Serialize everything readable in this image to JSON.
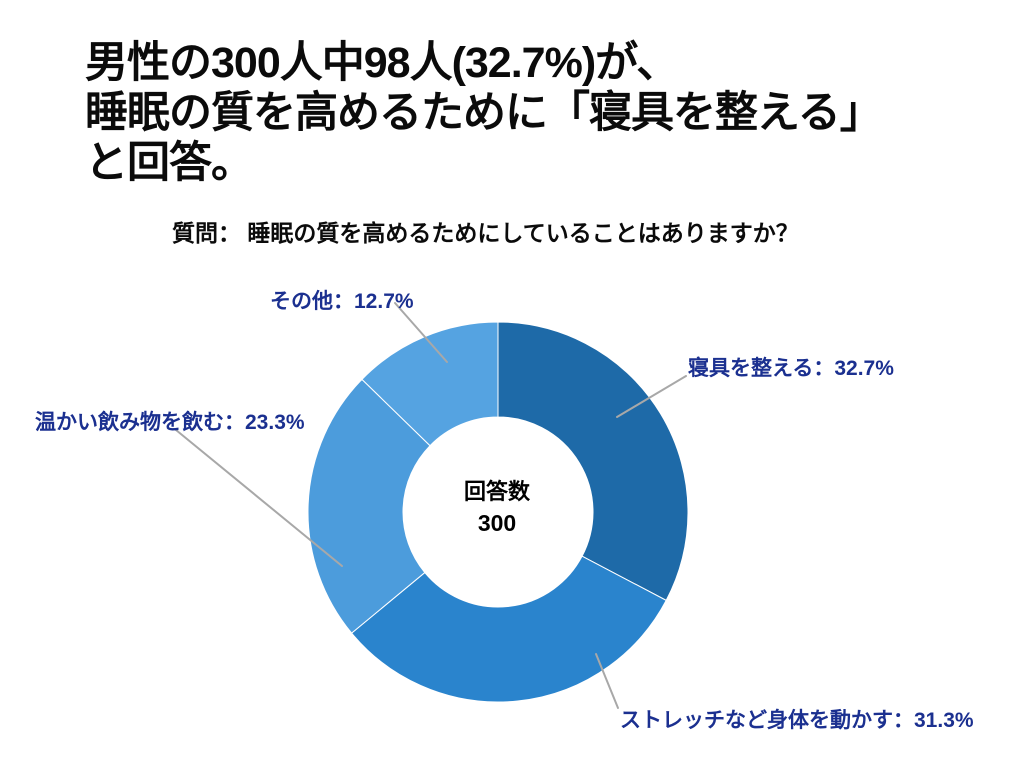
{
  "page": {
    "background_color": "#ffffff"
  },
  "header": {
    "title_lines": [
      "男性の300人中98人(32.7%)が、",
      "睡眠の質を高めるために「寝具を整える」",
      "と回答。"
    ],
    "question": "質問： 睡眠の質を高めるためにしていることはありますか？"
  },
  "chart_data": {
    "type": "pie",
    "subtype": "donut",
    "start_angle_deg": 0,
    "direction": "clockwise",
    "center_label": "回答数",
    "center_value": "300",
    "total_responses": 300,
    "slices": [
      {
        "name": "寝具を整える",
        "pct": 32.7,
        "color": "#1e6aa8",
        "display": "寝具を整える：32.7%"
      },
      {
        "name": "ストレッチなど身体を動かす",
        "pct": 31.3,
        "color": "#2a84cd",
        "display": "ストレッチなど身体を動かす：31.3%"
      },
      {
        "name": "温かい飲み物を飲む",
        "pct": 23.3,
        "color": "#4c9cdc",
        "display": "温かい飲み物を飲む：23.3%"
      },
      {
        "name": "その他",
        "pct": 12.7,
        "color": "#55a3e1",
        "display": "その他：12.7%"
      }
    ],
    "label_color": "#1b3090",
    "leader_line_color": "#a8a8a8",
    "slice_border_color": "#ffffff",
    "legend": "none",
    "labels_position": "outside-with-leader-lines"
  }
}
